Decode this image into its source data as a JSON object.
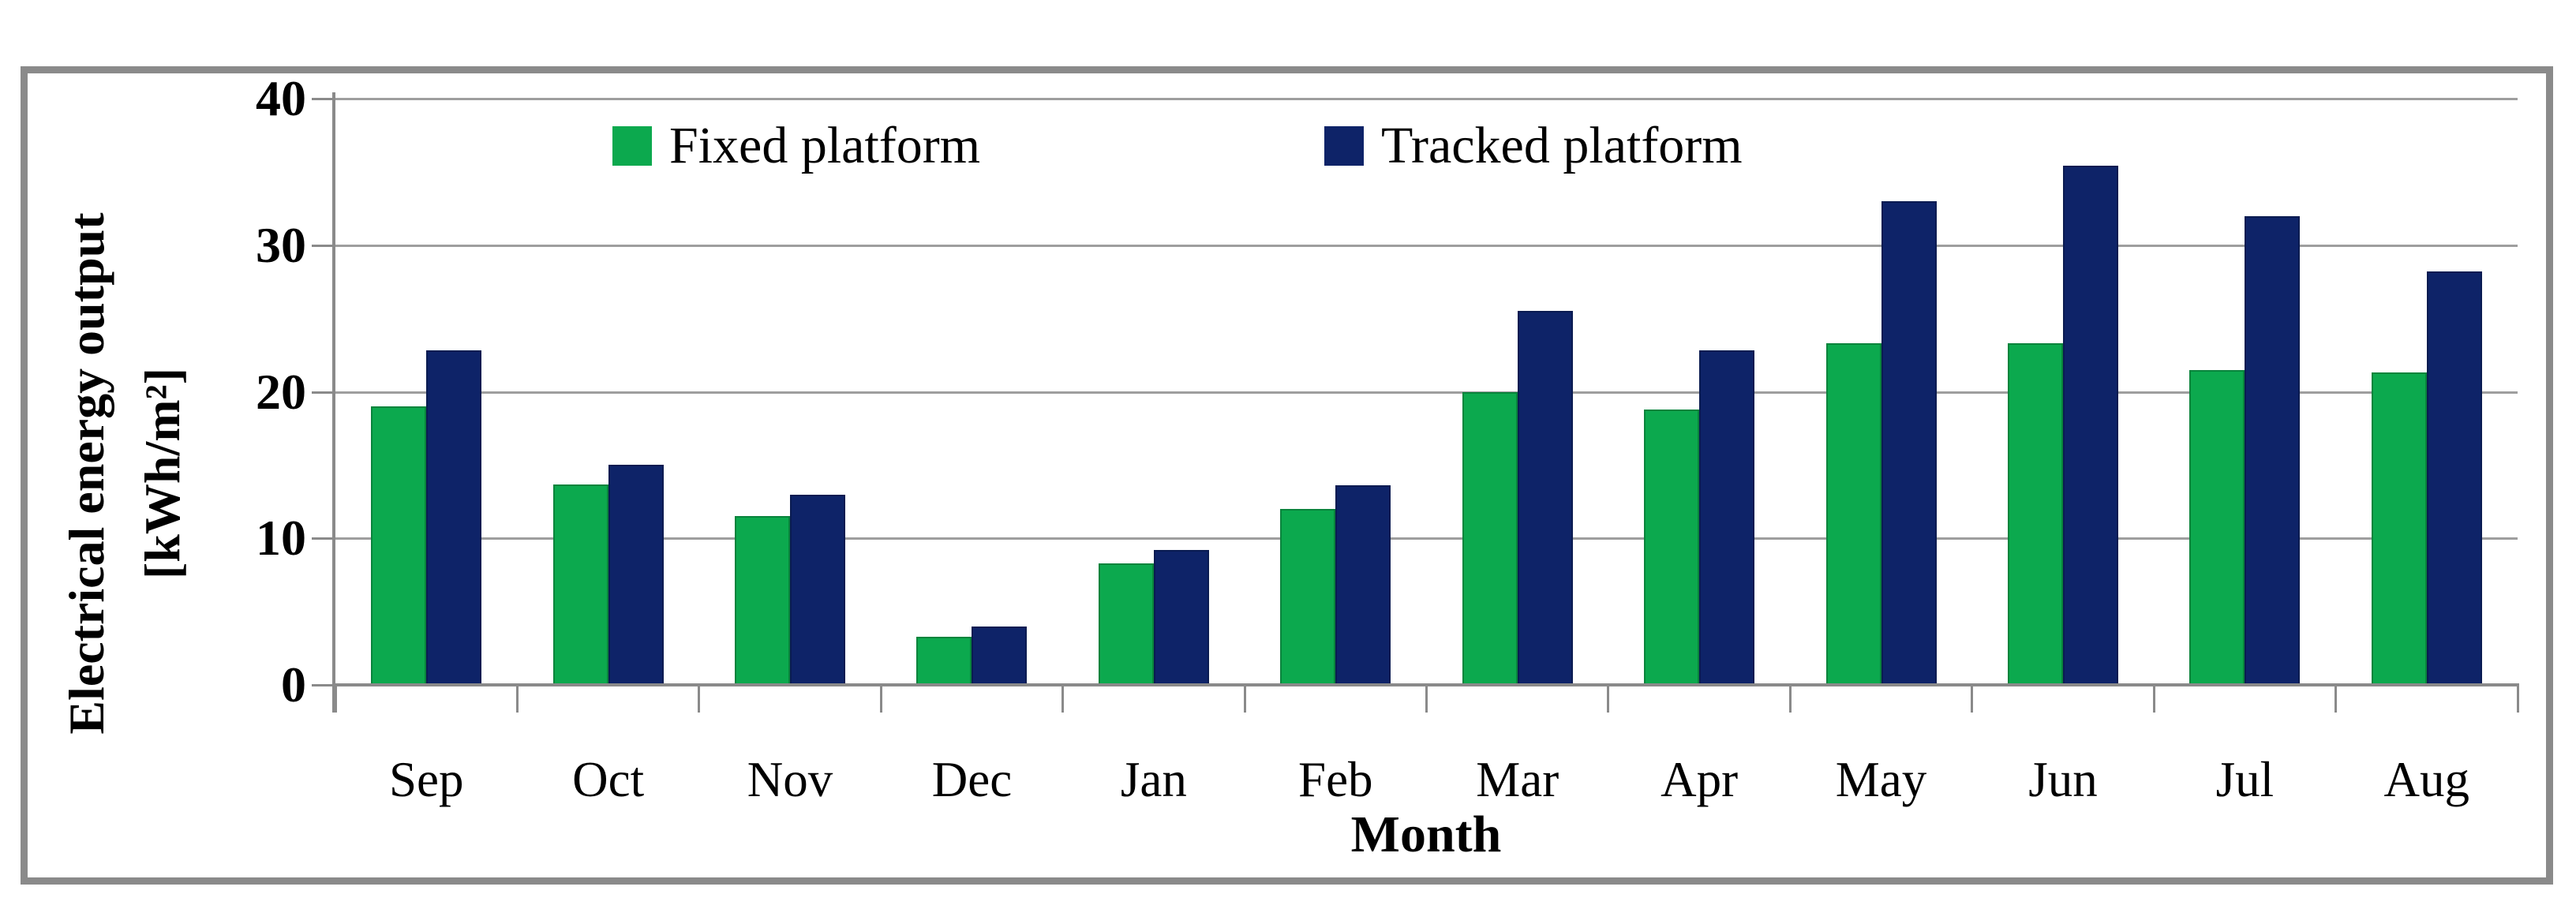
{
  "figure": {
    "background": "#FFFFFF",
    "frame_color": "#8A8A8A"
  },
  "legend": {
    "items": [
      {
        "label": "Fixed platform",
        "color": "#0CA94E"
      },
      {
        "label": "Tracked platform",
        "color": "#0E2368"
      }
    ]
  },
  "y_axis": {
    "title_line1": "Electrical energy output",
    "title_line2": "[kWh/m²]",
    "tick_labels": [
      "0",
      "10",
      "20",
      "30",
      "40"
    ]
  },
  "x_axis": {
    "title": "Month"
  },
  "chart_data": {
    "type": "bar",
    "title": "",
    "categories": [
      "Sep",
      "Oct",
      "Nov",
      "Dec",
      "Jan",
      "Feb",
      "Mar",
      "Apr",
      "May",
      "Jun",
      "Jul",
      "Aug"
    ],
    "series": [
      {
        "name": "Fixed platform",
        "color": "#0CA94E",
        "values": [
          19.0,
          13.7,
          11.5,
          3.3,
          8.3,
          12.0,
          20.0,
          18.8,
          23.3,
          23.3,
          21.5,
          21.3
        ]
      },
      {
        "name": "Tracked platform",
        "color": "#0E2368",
        "values": [
          22.8,
          15.0,
          13.0,
          4.0,
          9.2,
          13.6,
          25.5,
          22.8,
          33.0,
          35.4,
          32.0,
          28.2
        ]
      }
    ],
    "xlabel": "Month",
    "ylabel": "Electrical energy output [kWh/m²]",
    "ylim": [
      0,
      40
    ],
    "ytick_step": 10,
    "grid": true,
    "gridline_color": "#9E9E9E",
    "axis_color": "#8A8A8A",
    "legend_position": "top-inside"
  }
}
